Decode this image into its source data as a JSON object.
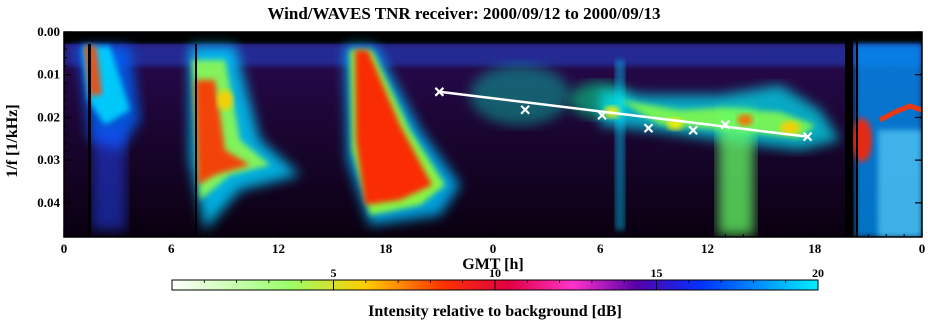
{
  "chart_data": {
    "type": "heatmap",
    "title": "Wind/WAVES TNR receiver: 2000/09/12 to 2000/09/13",
    "xlabel": "GMT [h]",
    "ylabel": "1/f [1/kHz]",
    "x_ticks": [
      "0",
      "6",
      "12",
      "18",
      "0",
      "6",
      "12",
      "18",
      "0"
    ],
    "y_ticks": [
      "0.00",
      "0.01",
      "0.02",
      "0.03",
      "0.04"
    ],
    "xlim": [
      0,
      48
    ],
    "ylim": [
      0.048,
      0.0
    ],
    "colorbar": {
      "label": "Intensity relative to background [dB]",
      "range": [
        0,
        20
      ],
      "ticks": [
        "5",
        "10",
        "15",
        "20"
      ]
    },
    "overlay": {
      "type": "line",
      "color": "#ffffff",
      "points": [
        {
          "x": 21.0,
          "y": 0.014
        },
        {
          "x": 25.8,
          "y": 0.0182
        },
        {
          "x": 30.1,
          "y": 0.0195
        },
        {
          "x": 32.7,
          "y": 0.0225
        },
        {
          "x": 35.2,
          "y": 0.023
        },
        {
          "x": 37.0,
          "y": 0.0217
        },
        {
          "x": 41.6,
          "y": 0.0245
        }
      ],
      "fit_line": [
        {
          "x": 21.0,
          "y": 0.014
        },
        {
          "x": 41.6,
          "y": 0.0245
        }
      ]
    }
  }
}
